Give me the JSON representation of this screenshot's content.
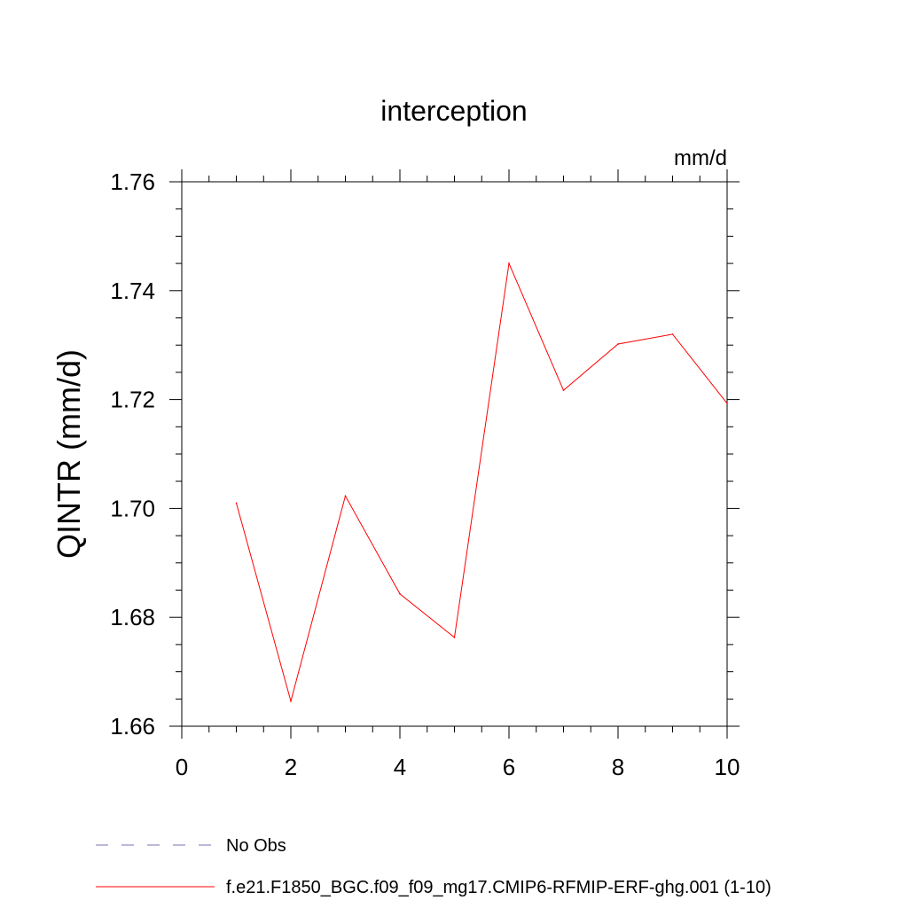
{
  "chart_data": {
    "type": "line",
    "title": "interception",
    "units_label": "mm/d",
    "ylabel": "QINTR  (mm/d)",
    "xlabel": "",
    "xlim": [
      0,
      10
    ],
    "ylim": [
      1.66,
      1.76
    ],
    "x_ticks": [
      "0",
      "2",
      "4",
      "6",
      "8",
      "10"
    ],
    "y_ticks": [
      "1.66",
      "1.68",
      "1.70",
      "1.72",
      "1.74",
      "1.76"
    ],
    "grid": false,
    "series": [
      {
        "name": "f.e21.F1850_BGC.f09_f09_mg17.CMIP6-RFMIP-ERF-ghg.001 (1-10)",
        "color": "#ff0000",
        "x": [
          1,
          2,
          3,
          4,
          5,
          6,
          7,
          8,
          9,
          10
        ],
        "y": [
          1.701,
          1.6646,
          1.7023,
          1.6843,
          1.6763,
          1.745,
          1.7217,
          1.7302,
          1.732,
          1.7193
        ]
      }
    ],
    "legend": [
      {
        "label": "No Obs",
        "color": "#7a70b0",
        "style": "dashed"
      },
      {
        "label": "f.e21.F1850_BGC.f09_f09_mg17.CMIP6-RFMIP-ERF-ghg.001 (1-10)",
        "color": "#ff0000",
        "style": "solid"
      }
    ],
    "legend_position": "bottom"
  }
}
